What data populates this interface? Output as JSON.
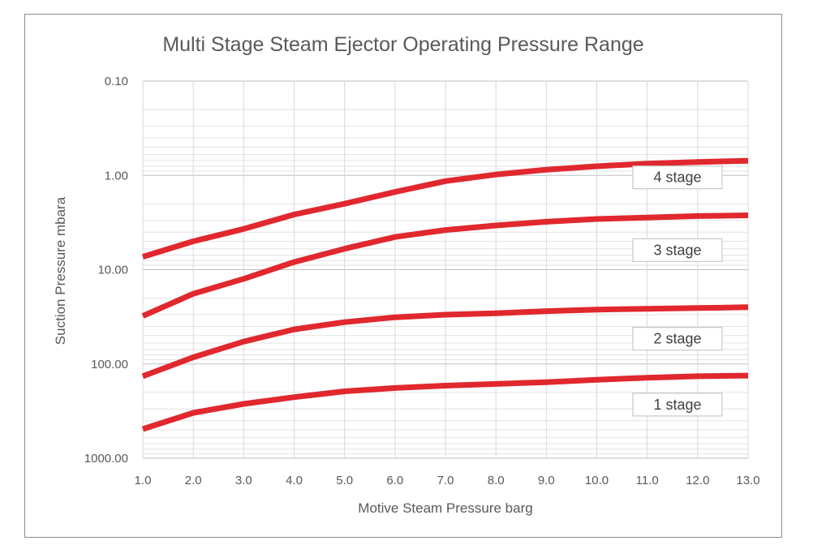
{
  "chart_data": {
    "type": "line",
    "title": "Multi Stage Steam Ejector Operating Pressure Range",
    "xlabel": "Motive Steam Pressure barg",
    "ylabel": "Suction Pressure mbara",
    "xlim": [
      1,
      13
    ],
    "ylim": [
      1000,
      0.1
    ],
    "y_scale": "log",
    "y_reversed": true,
    "grid": true,
    "x": [
      1,
      2,
      3,
      4,
      5,
      6,
      7,
      8,
      9,
      10,
      11,
      12,
      13
    ],
    "x_tick_labels": [
      "1.0",
      "2.0",
      "3.0",
      "4.0",
      "5.0",
      "6.0",
      "7.0",
      "8.0",
      "9.0",
      "10.0",
      "11.0",
      "12.0",
      "13.0"
    ],
    "y_ticks": [
      0.1,
      1,
      10,
      100,
      1000
    ],
    "y_tick_labels": [
      "0.10",
      "1.00",
      "10.00",
      "100.00",
      "1000.00"
    ],
    "series_color": "#e0282e",
    "series": [
      {
        "values": [
          7.3,
          5.0,
          3.7,
          2.6,
          2.0,
          1.5,
          1.15,
          0.98,
          0.87,
          0.8,
          0.75,
          0.72,
          0.7
        ]
      },
      {
        "values": [
          31,
          18,
          12.5,
          8.3,
          6.0,
          4.5,
          3.8,
          3.4,
          3.1,
          2.9,
          2.8,
          2.7,
          2.65
        ]
      },
      {
        "values": [
          135,
          85,
          58,
          43,
          36,
          32,
          30,
          29,
          27.5,
          26.5,
          26,
          25.5,
          25
        ]
      },
      {
        "values": [
          490,
          330,
          265,
          225,
          195,
          180,
          170,
          163,
          156,
          147,
          140,
          135,
          133
        ]
      }
    ],
    "annotations": [
      {
        "text": "4 stage",
        "x": 11.6,
        "y": 1.05
      },
      {
        "text": "3 stage",
        "x": 11.6,
        "y": 6.2
      },
      {
        "text": "2 stage",
        "x": 11.6,
        "y": 54
      },
      {
        "text": "1 stage",
        "x": 11.6,
        "y": 270
      }
    ]
  }
}
